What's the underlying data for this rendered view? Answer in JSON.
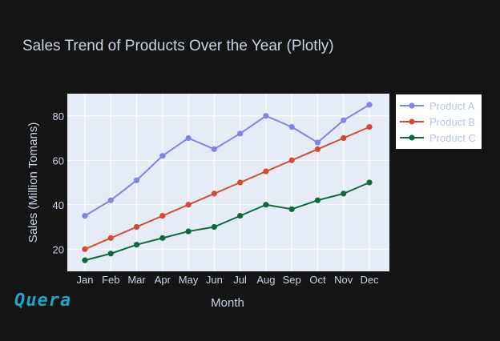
{
  "chart_data": {
    "type": "line",
    "title": "Sales Trend of Products Over the Year (Plotly)",
    "xlabel": "Month",
    "ylabel": "Sales (Million Tomans)",
    "categories": [
      "Jan",
      "Feb",
      "Mar",
      "Apr",
      "May",
      "Jun",
      "Jul",
      "Aug",
      "Sep",
      "Oct",
      "Nov",
      "Dec"
    ],
    "ylim": [
      10,
      90
    ],
    "yticks": [
      20,
      40,
      60,
      80
    ],
    "grid": true,
    "legend_position": "right",
    "series": [
      {
        "name": "Product A",
        "color": "#7f84e8",
        "values": [
          35,
          42,
          51,
          62,
          70,
          65,
          72,
          80,
          75,
          68,
          78,
          85
        ]
      },
      {
        "name": "Product B",
        "color": "#d24a33",
        "values": [
          20,
          25,
          30,
          35,
          40,
          45,
          50,
          55,
          60,
          65,
          70,
          75
        ]
      },
      {
        "name": "Product C",
        "color": "#0b6b3a",
        "values": [
          15,
          18,
          22,
          25,
          28,
          30,
          35,
          40,
          38,
          42,
          45,
          50
        ]
      }
    ]
  },
  "logo": {
    "text": "Quera",
    "color": "#1fa3c9"
  },
  "colors": {
    "background": "#141414",
    "plot_background": "#e6ecf5",
    "text": "#c9d3e6"
  }
}
